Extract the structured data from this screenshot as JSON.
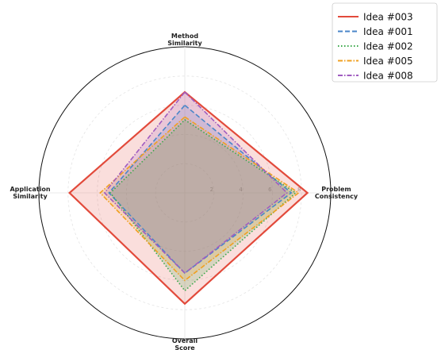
{
  "chart_data": {
    "type": "radar",
    "axes": [
      [
        "Method",
        "Similarity"
      ],
      [
        "Problem",
        "Consistency"
      ],
      [
        "Overall",
        "Score"
      ],
      [
        "Application",
        "Similarity"
      ]
    ],
    "rlim": [
      0,
      10
    ],
    "rticks": [
      2,
      4,
      6,
      8
    ],
    "rtick_labels": [
      "2",
      "4",
      "6",
      "8"
    ],
    "grid": true,
    "legend_position": "top-right",
    "series": [
      {
        "name": "Idea #003",
        "color": "#e24a3b",
        "dash": "solid",
        "fill": true,
        "values": [
          6.9,
          8.4,
          7.6,
          7.9
        ]
      },
      {
        "name": "Idea #001",
        "color": "#4a86c8",
        "dash": "dashed",
        "fill": true,
        "values": [
          6.0,
          7.3,
          5.5,
          5.2
        ]
      },
      {
        "name": "Idea #002",
        "color": "#3aa84a",
        "dash": "dotted",
        "fill": true,
        "values": [
          5.0,
          7.6,
          6.7,
          5.1
        ]
      },
      {
        "name": "Idea #005",
        "color": "#f0a020",
        "dash": "dashdot",
        "fill": true,
        "values": [
          5.2,
          7.8,
          6.0,
          5.8
        ]
      },
      {
        "name": "Idea #008",
        "color": "#a05cc0",
        "dash": "dashdot",
        "fill": true,
        "values": [
          6.9,
          7.0,
          5.5,
          5.5
        ]
      }
    ]
  }
}
